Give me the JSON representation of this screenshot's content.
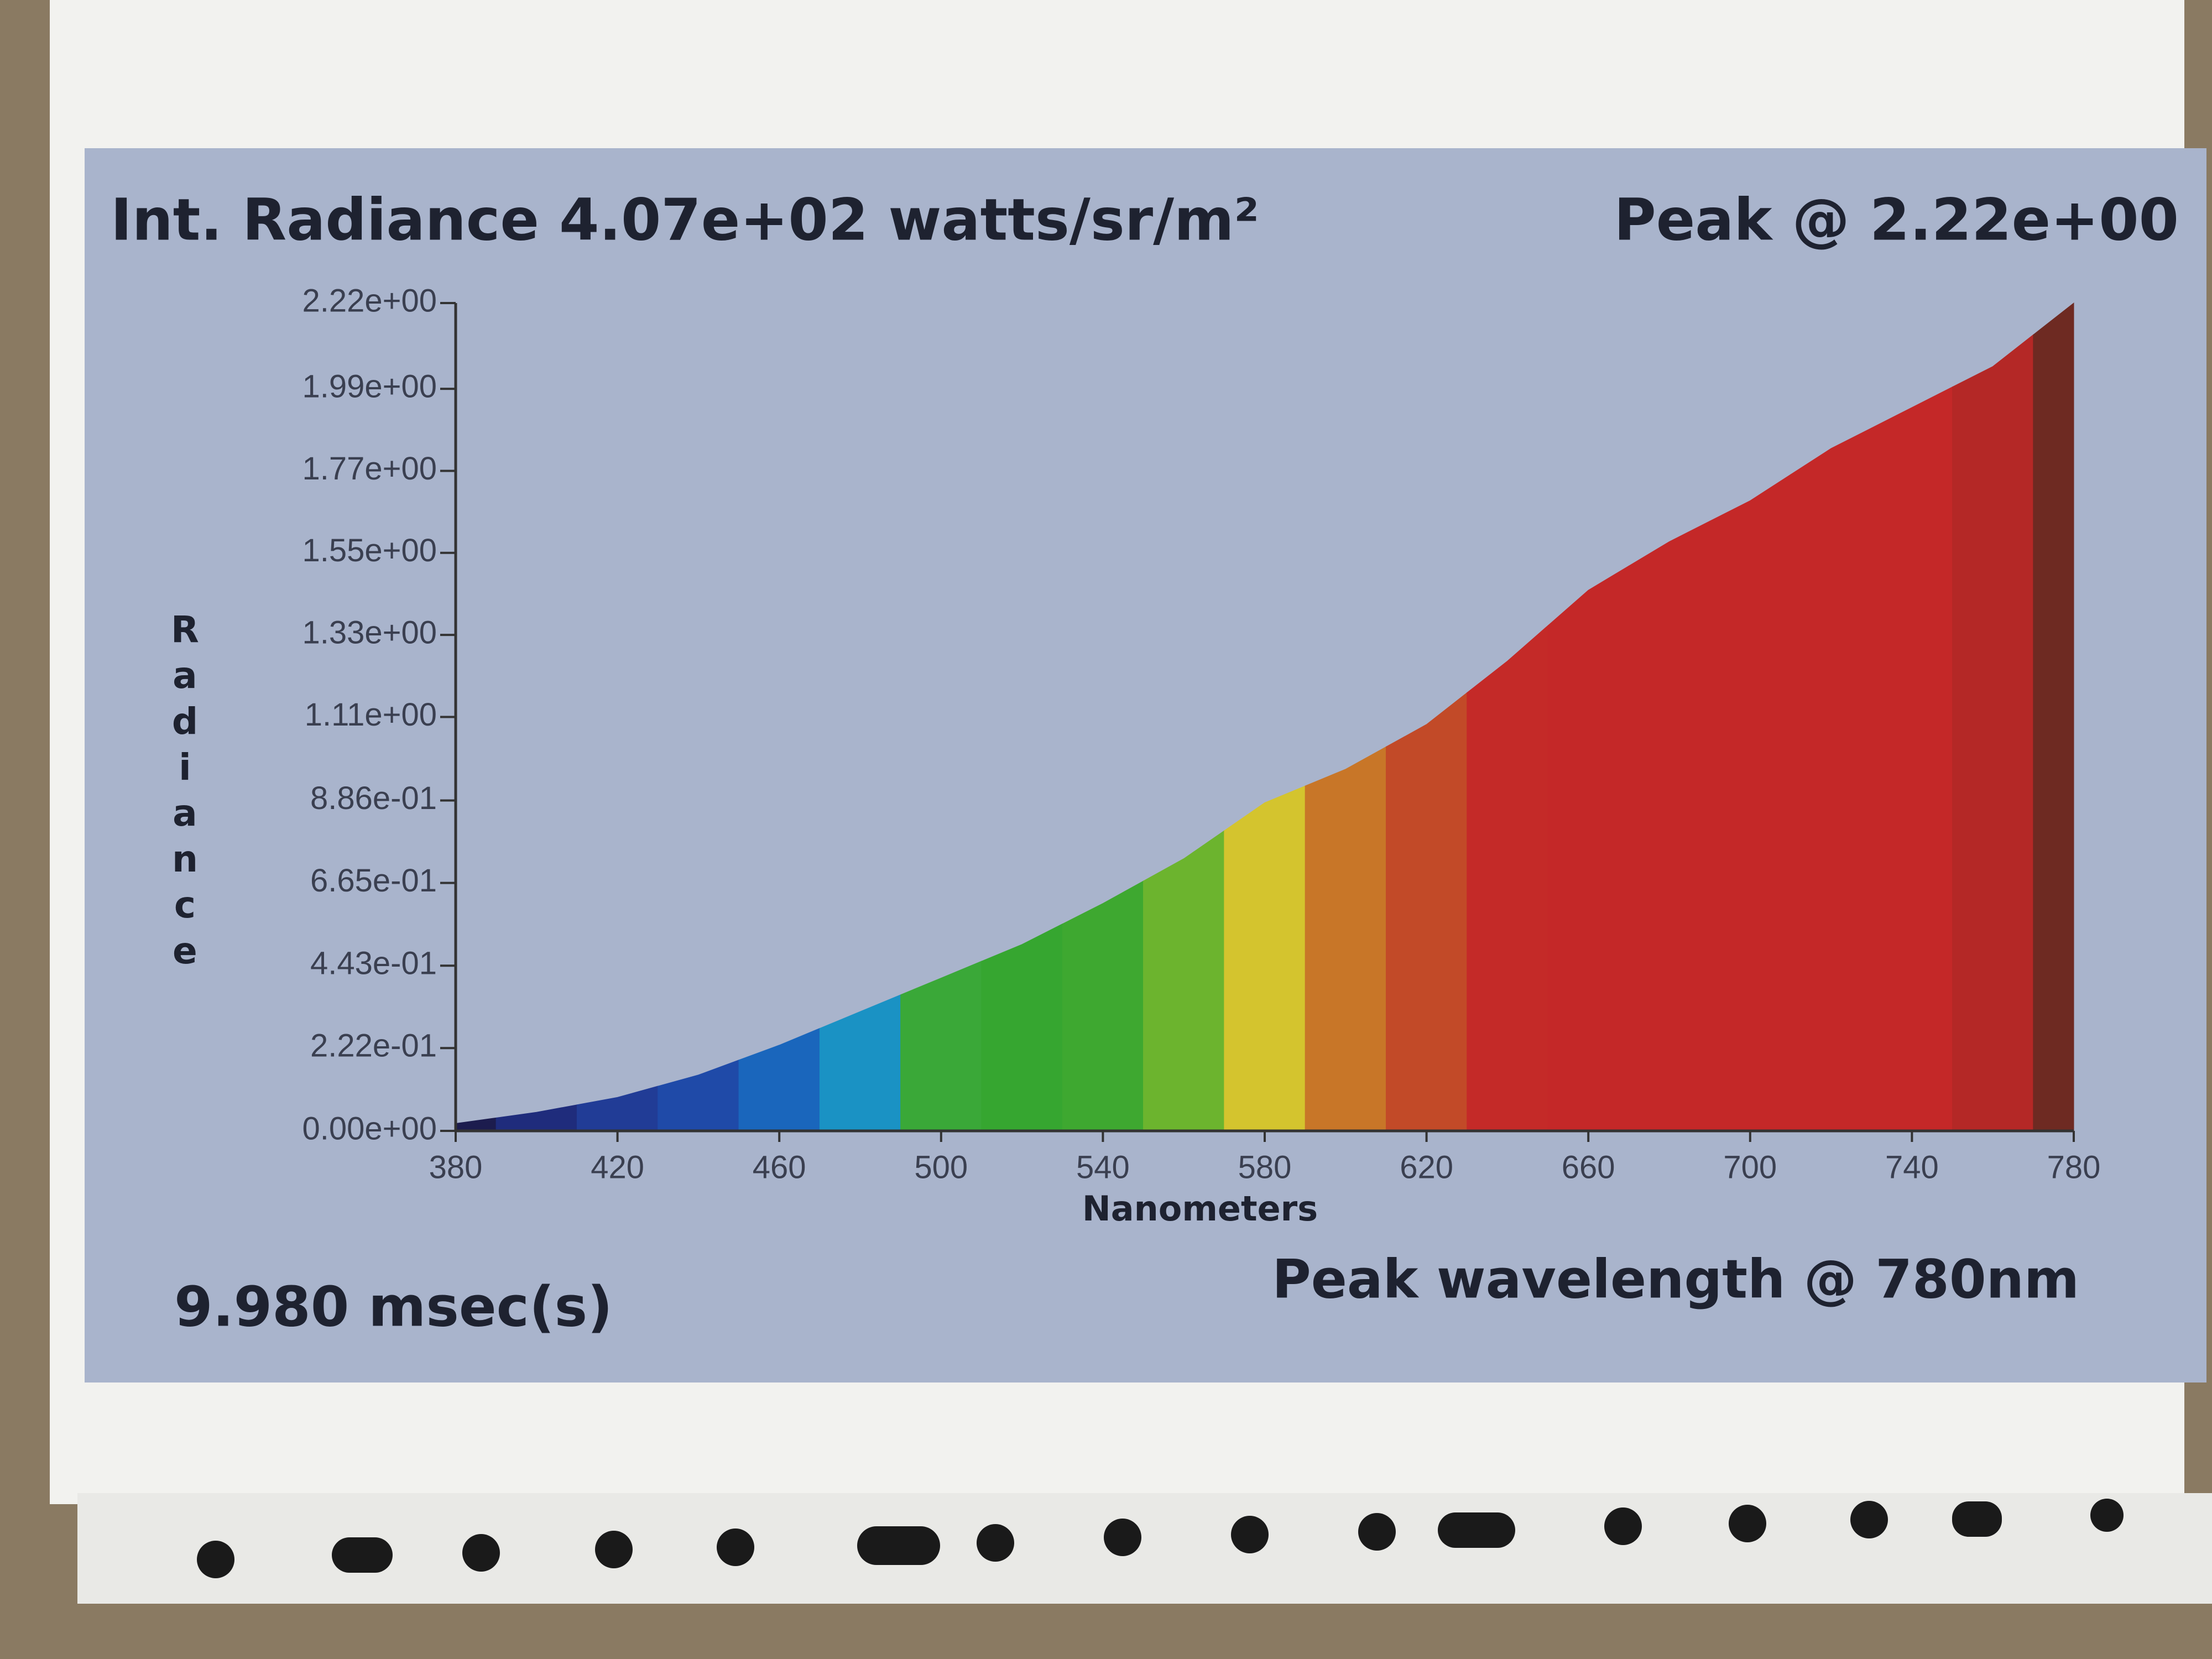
{
  "chart_data": {
    "type": "area",
    "title": "Int. Radiance 4.07e+02 watts/sr/m²",
    "subtitle": "Peak @ 2.22e+00",
    "ylabel": "Radiance",
    "xlabel": "Nanometers",
    "annotations": [
      "9.980 msec(s)",
      "Peak wavelength @ 780nm"
    ],
    "x": [
      380,
      400,
      420,
      440,
      460,
      480,
      500,
      520,
      540,
      560,
      580,
      600,
      620,
      640,
      660,
      680,
      700,
      720,
      740,
      760,
      780
    ],
    "series": [
      {
        "name": "Radiance",
        "values": [
          0.02,
          0.05,
          0.09,
          0.15,
          0.23,
          0.32,
          0.41,
          0.5,
          0.61,
          0.73,
          0.88,
          0.97,
          1.09,
          1.26,
          1.45,
          1.58,
          1.69,
          1.83,
          1.94,
          2.05,
          2.22
        ],
        "colors": [
          "#1c1c4e",
          "#1f2c7c",
          "#213c96",
          "#1f4aa8",
          "#1a66bc",
          "#1a92c4",
          "#3aa838",
          "#36a630",
          "#3ea830",
          "#6cb42e",
          "#d4c42e",
          "#c87628",
          "#c24a28",
          "#c42a28",
          "#c42828",
          "#c42828",
          "#c42828",
          "#c42828",
          "#c42828",
          "#b42826",
          "#6e2a22"
        ]
      }
    ],
    "xlim": [
      380,
      780
    ],
    "xticks": [
      380,
      420,
      460,
      500,
      540,
      580,
      620,
      660,
      700,
      740,
      780
    ],
    "ylim": [
      0,
      2.22
    ],
    "yticks": [
      {
        "value": 0,
        "label": "0.00e+00"
      },
      {
        "value": 0.222,
        "label": "2.22e-01"
      },
      {
        "value": 0.443,
        "label": "4.43e-01"
      },
      {
        "value": 0.665,
        "label": "6.65e-01"
      },
      {
        "value": 0.886,
        "label": "8.86e-01"
      },
      {
        "value": 1.11,
        "label": "1.11e+00"
      },
      {
        "value": 1.33,
        "label": "1.33e+00"
      },
      {
        "value": 1.55,
        "label": "1.55e+00"
      },
      {
        "value": 1.77,
        "label": "1.77e+00"
      },
      {
        "value": 1.99,
        "label": "1.99e+00"
      },
      {
        "value": 2.22,
        "label": "2.22e+00"
      }
    ]
  }
}
